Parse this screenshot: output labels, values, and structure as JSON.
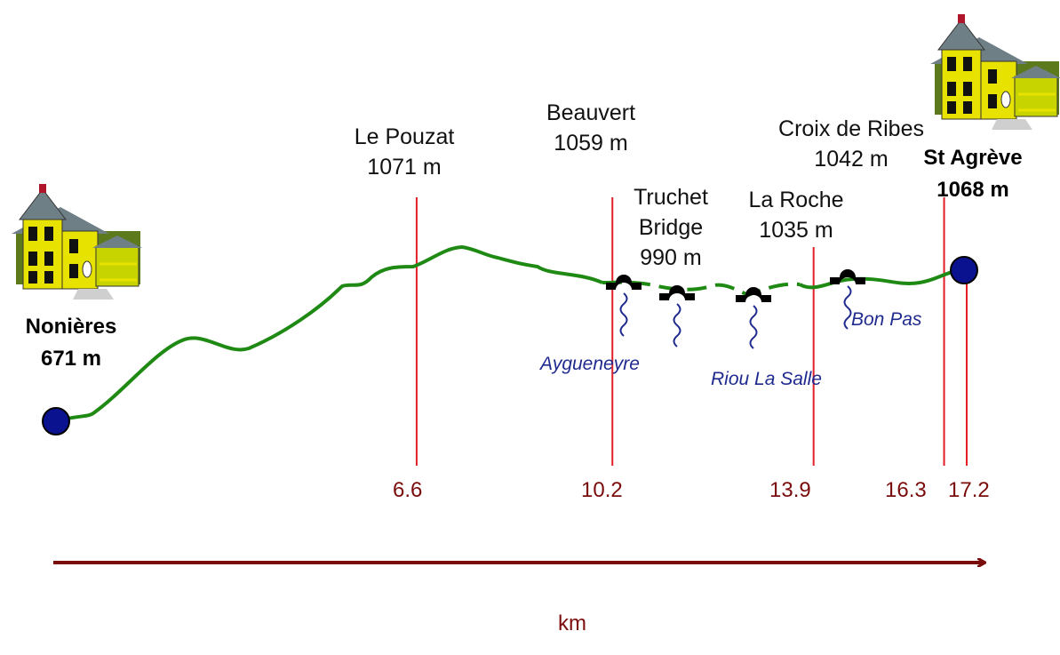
{
  "start": {
    "name": "Nonières",
    "elevation": "671 m",
    "km": 0
  },
  "end": {
    "name": "St Agrève",
    "elevation": "1068 m",
    "km": 17.2
  },
  "waypoints": [
    {
      "name": "Le Pouzat",
      "elevation": "1071 m",
      "km": 6.6,
      "km_label": "6.6"
    },
    {
      "name": "Beauvert",
      "elevation": "1059 m",
      "km": 10.2,
      "km_label": "10.2"
    },
    {
      "name": "La Roche",
      "elevation": "1035 m",
      "km": 13.9,
      "km_label": "13.9"
    },
    {
      "name": "Croix de Ribes",
      "elevation": "1042 m",
      "km": 16.3,
      "km_label": "16.3"
    }
  ],
  "end_km_label": "17.2",
  "bridge": {
    "line1": "Truchet",
    "line2": "Bridge",
    "elevation": "990 m"
  },
  "streams": [
    "Aygueneyre",
    "Riou La Salle",
    "Bon Pas"
  ],
  "axis": {
    "unit_label": "km"
  },
  "colors": {
    "route": "#1f8a13",
    "marker": "#e21f26",
    "axis": "#7a0c0c",
    "stream": "#1f2a8f",
    "endpoint": "#0a128f"
  },
  "icons": [
    "house-icon",
    "bridge-icon",
    "stream-icon"
  ]
}
